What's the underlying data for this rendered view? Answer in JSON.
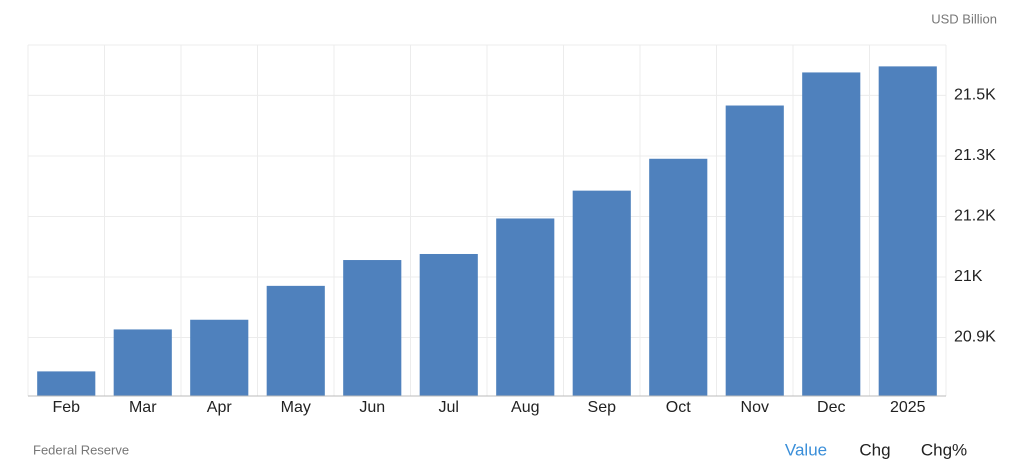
{
  "chart_data": {
    "type": "bar",
    "unit_label": "USD Billion",
    "source": "Federal Reserve",
    "categories": [
      "Feb",
      "Mar",
      "Apr",
      "May",
      "Jun",
      "Jul",
      "Aug",
      "Sep",
      "Oct",
      "Nov",
      "Dec",
      "2025"
    ],
    "values": [
      20791,
      20895,
      20919,
      21003,
      21067,
      21082,
      21170,
      21239,
      21318,
      21450,
      21532,
      21547
    ],
    "color": "#4f81bd",
    "ylim": [
      20730,
      21600
    ],
    "yticks": [
      {
        "value": 20875,
        "label": "20.9K"
      },
      {
        "value": 21025,
        "label": "21K"
      },
      {
        "value": 21175,
        "label": "21.2K"
      },
      {
        "value": 21325,
        "label": "21.3K"
      },
      {
        "value": 21475,
        "label": "21.5K"
      }
    ],
    "grid": true
  },
  "controls": [
    "Value",
    "Chg",
    "Chg%"
  ]
}
